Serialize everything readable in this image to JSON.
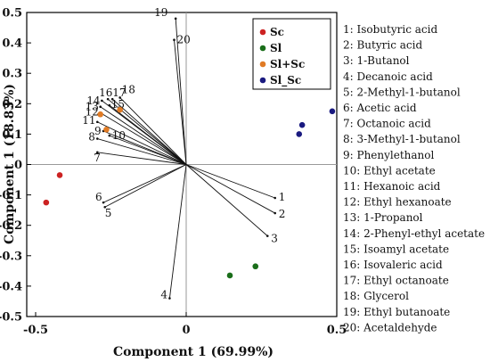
{
  "chart_data": {
    "type": "scatter",
    "subtype": "pca-biplot",
    "xlabel": "Component 1 (69.99%)",
    "ylabel": "Component 1 (18.83%)",
    "xlim": [
      -0.5,
      0.5
    ],
    "ylim": [
      -0.5,
      0.5
    ],
    "x_ticks": [
      "-0.5",
      "0",
      "0.5"
    ],
    "y_ticks": [
      "-0.5",
      "-0.4",
      "-0.3",
      "-0.2",
      "-0.1",
      "0",
      "0.1",
      "0.2",
      "0.3",
      "0.4",
      "0.5"
    ],
    "reference_lines": "x=0 and y=0",
    "grid": false,
    "legend_position": "top-right",
    "series": [
      {
        "name": "Sc",
        "color": "#cc2222",
        "points": [
          [
            -0.42,
            -0.035
          ],
          [
            -0.465,
            -0.125
          ]
        ]
      },
      {
        "name": "Sl",
        "color": "#1a6e1a",
        "points": [
          [
            0.145,
            -0.365
          ],
          [
            0.23,
            -0.335
          ]
        ]
      },
      {
        "name": "Sl+Sc",
        "color": "#e07b25",
        "points": [
          [
            -0.285,
            0.165
          ],
          [
            -0.265,
            0.115
          ],
          [
            -0.22,
            0.18
          ]
        ]
      },
      {
        "name": "Sl_Sc",
        "color": "#1a1a80",
        "points": [
          [
            0.375,
            0.1
          ],
          [
            0.385,
            0.13
          ],
          [
            0.485,
            0.175
          ]
        ]
      }
    ],
    "loadings": [
      {
        "id": "1",
        "name": "Isobutyric acid",
        "x": 0.295,
        "y": -0.11
      },
      {
        "id": "2",
        "name": "Butyric acid",
        "x": 0.295,
        "y": -0.16
      },
      {
        "id": "3",
        "name": "1-Butanol",
        "x": 0.27,
        "y": -0.235
      },
      {
        "id": "4",
        "name": "Decanoic acid",
        "x": -0.055,
        "y": -0.44
      },
      {
        "id": "5",
        "name": "2-Methyl-1-butanol",
        "x": -0.27,
        "y": -0.14
      },
      {
        "id": "6",
        "name": "Acetic acid",
        "x": -0.275,
        "y": -0.125
      },
      {
        "id": "7",
        "name": "Octanoic acid",
        "x": -0.295,
        "y": 0.04
      },
      {
        "id": "8",
        "name": "3-Methyl-1-butanol",
        "x": -0.295,
        "y": 0.085
      },
      {
        "id": "9",
        "name": "Phenylethanol",
        "x": -0.275,
        "y": 0.11
      },
      {
        "id": "10",
        "name": "Ethyl acetate",
        "x": -0.255,
        "y": 0.095
      },
      {
        "id": "11",
        "name": "Hexanoic acid",
        "x": -0.295,
        "y": 0.14
      },
      {
        "id": "12",
        "name": "Ethyl hexanoate",
        "x": -0.285,
        "y": 0.17
      },
      {
        "id": "13",
        "name": "1-Propanol",
        "x": -0.285,
        "y": 0.19
      },
      {
        "id": "14",
        "name": "2-Phenyl-ethyl acetate",
        "x": -0.28,
        "y": 0.21
      },
      {
        "id": "15",
        "name": "Isoamyl acetate",
        "x": -0.255,
        "y": 0.195
      },
      {
        "id": "16",
        "name": "Isovaleric acid",
        "x": -0.26,
        "y": 0.215
      },
      {
        "id": "17",
        "name": "Ethyl octanoate",
        "x": -0.245,
        "y": 0.215
      },
      {
        "id": "18",
        "name": "Glycerol",
        "x": -0.22,
        "y": 0.22
      },
      {
        "id": "19",
        "name": "Ethyl butanoate",
        "x": -0.035,
        "y": 0.48
      },
      {
        "id": "20",
        "name": "Acetaldehyde",
        "x": -0.04,
        "y": 0.41
      }
    ]
  }
}
